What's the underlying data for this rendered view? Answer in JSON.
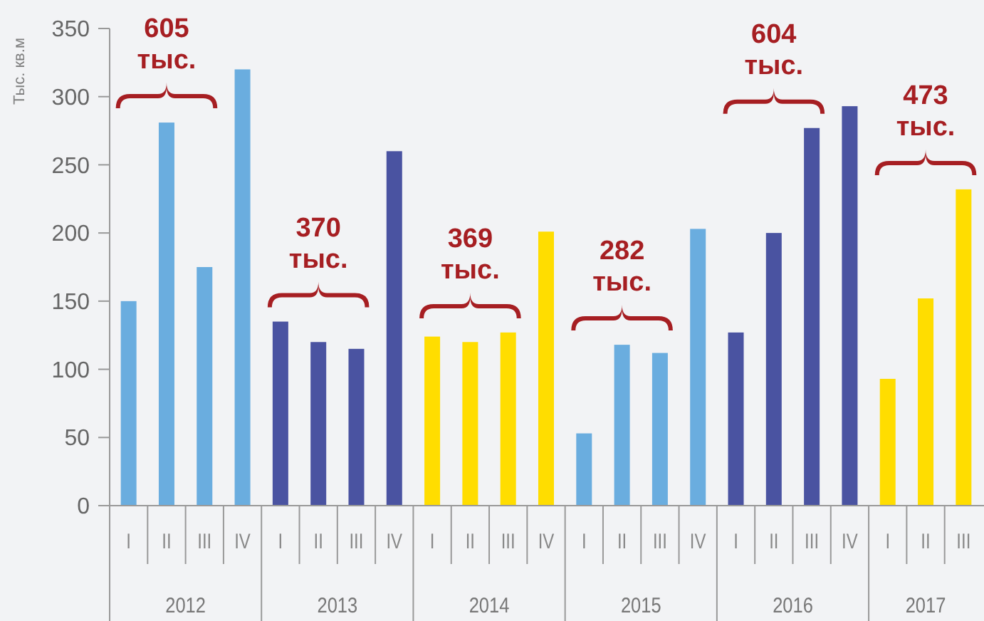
{
  "chart_data": {
    "type": "bar",
    "ylabel": "Тыс. кв.м",
    "categories": [
      "I",
      "II",
      "III",
      "IV",
      "I",
      "II",
      "III",
      "IV",
      "I",
      "II",
      "III",
      "IV",
      "I",
      "II",
      "III",
      "IV",
      "I",
      "II",
      "III",
      "IV",
      "I",
      "II",
      "III"
    ],
    "values": [
      150,
      281,
      175,
      320,
      135,
      120,
      115,
      260,
      124,
      120,
      127,
      201,
      53,
      118,
      112,
      203,
      127,
      200,
      277,
      293,
      93,
      152,
      232
    ],
    "colors": [
      "#6aaddf",
      "#6aaddf",
      "#6aaddf",
      "#6aaddf",
      "#4a53a1",
      "#4a53a1",
      "#4a53a1",
      "#4a53a1",
      "#ffdd00",
      "#ffdd00",
      "#ffdd00",
      "#ffdd00",
      "#6aaddf",
      "#6aaddf",
      "#6aaddf",
      "#6aaddf",
      "#4a53a1",
      "#4a53a1",
      "#4a53a1",
      "#4a53a1",
      "#ffdd00",
      "#ffdd00",
      "#ffdd00"
    ],
    "ylim": [
      0,
      350
    ],
    "yticks": [
      0,
      50,
      100,
      150,
      200,
      250,
      300,
      350
    ],
    "grid": false,
    "annotations": [
      "605 тыс.",
      "370 тыс.",
      "369 тыс.",
      "282 тыс.",
      "604 тыс.",
      "473 тыс.",
      "2012",
      "2013",
      "2014",
      "2015",
      "2016",
      "2017"
    ]
  }
}
